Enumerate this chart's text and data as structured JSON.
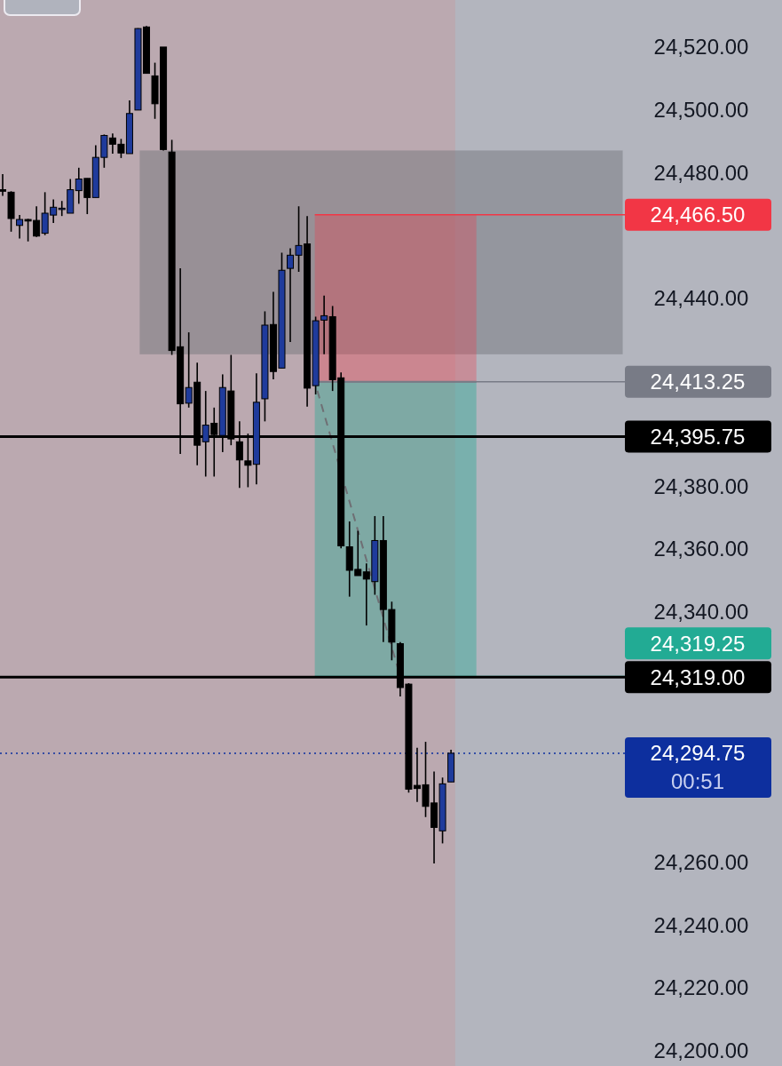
{
  "chart_data": {
    "type": "candlestick",
    "colors": [
      "#000000",
      "#000000",
      "#1f3b9c",
      "#000000",
      "#000000",
      "#1f3b9c",
      "#1f3b9c",
      "#1f3b9c",
      "#1f3b9c",
      "#1f3b9c",
      "#000000",
      "#1f3b9c",
      "#1f3b9c",
      "#000000",
      "#000000",
      "#1f3b9c",
      "#1f3b9c",
      "#000000",
      "#000000",
      "#000000",
      "#000000",
      "#000000",
      "#1f3b9c",
      "#000000",
      "#1f3b9c",
      "#000000",
      "#1f3b9c",
      "#000000",
      "#000000",
      "#000000",
      "#1f3b9c",
      "#1f3b9c",
      "#000000",
      "#1f3b9c",
      "#1f3b9c",
      "#1f3b9c",
      "#000000",
      "#1f3b9c",
      "#1f3b9c",
      "#000000",
      "#000000",
      "#000000",
      "#000000",
      "#000000",
      "#1f3b9c",
      "#000000",
      "#000000",
      "#000000",
      "#000000",
      "#000000",
      "#000000",
      "#000000",
      "#1f3b9c",
      "#1f3b9c",
      null,
      null,
      null,
      null,
      null,
      null,
      null,
      null,
      null,
      null,
      null,
      null,
      null,
      null,
      null,
      null,
      null,
      null,
      null,
      null
    ],
    "categories": [
      null,
      null,
      null,
      null,
      null,
      null,
      null,
      null,
      null,
      null,
      null,
      null,
      null,
      null,
      null,
      null,
      null,
      null,
      null,
      null,
      null,
      null,
      null,
      null,
      null,
      null,
      null,
      null,
      null,
      null,
      null,
      null,
      null,
      null,
      null,
      null,
      null,
      null,
      null,
      null,
      null,
      null,
      null,
      null,
      null,
      null,
      null,
      null,
      null,
      null,
      null,
      null,
      null,
      null,
      null,
      null,
      null,
      null,
      null,
      null,
      null,
      null,
      null,
      null,
      null,
      null,
      null,
      null,
      null,
      null,
      null,
      null,
      null,
      null
    ],
    "ohlc": [
      [
        24474.5,
        24479.5,
        24472.5,
        24474.0
      ],
      [
        24473.7,
        24474.0,
        24461.1,
        24465.3
      ],
      [
        24463.1,
        24466.4,
        24458.9,
        24465.0
      ],
      [
        24465.0,
        24465.2,
        24458.0,
        24464.5
      ],
      [
        24464.7,
        24469.2,
        24459.4,
        24459.7
      ],
      [
        24460.6,
        24473.7,
        24460.0,
        24467.0
      ],
      [
        24466.4,
        24471.4,
        24463.9,
        24468.9
      ],
      [
        24468.2,
        24470.9,
        24466.1,
        24468.6
      ],
      [
        24467.0,
        24477.9,
        24467.0,
        24474.5
      ],
      [
        24474.2,
        24481.5,
        24470.0,
        24477.9
      ],
      [
        24478.1,
        24478.1,
        24466.7,
        24472.0
      ],
      [
        24472.0,
        24488.7,
        24472.0,
        24484.8
      ],
      [
        24484.8,
        24492.1,
        24481.5,
        24491.8
      ],
      [
        24491.0,
        24492.4,
        24486.0,
        24489.0
      ],
      [
        24489.0,
        24490.7,
        24484.6,
        24486.2
      ],
      [
        24486.0,
        24503.0,
        24486.0,
        24498.8
      ],
      [
        24499.9,
        24526.0,
        24499.9,
        24525.9
      ],
      [
        24526.4,
        24526.7,
        24511.6,
        24511.6
      ],
      [
        24510.8,
        24515.0,
        24497.1,
        24501.9
      ],
      [
        24520.0,
        24520.0,
        24487.0,
        24487.3
      ],
      [
        24486.5,
        24490.4,
        24421.8,
        24423.2
      ],
      [
        24424.4,
        24449.4,
        24390.2,
        24406.2
      ],
      [
        24406.4,
        24429.0,
        24405.0,
        24411.4
      ],
      [
        24413.1,
        24419.3,
        24386.6,
        24393.0
      ],
      [
        24394.1,
        24410.3,
        24383.0,
        24399.4
      ],
      [
        24400.0,
        24405.0,
        24383.0,
        24396.4
      ],
      [
        24396.1,
        24415.6,
        24390.8,
        24411.4
      ],
      [
        24410.3,
        24421.8,
        24393.0,
        24395.0
      ],
      [
        24394.1,
        24400.6,
        24379.4,
        24388.3
      ],
      [
        24388.0,
        24396.7,
        24379.6,
        24386.6
      ],
      [
        24386.9,
        24415.9,
        24380.5,
        24406.7
      ],
      [
        24407.8,
        24435.7,
        24400.6,
        24431.3
      ],
      [
        24431.5,
        24441.9,
        24414.0,
        24416.5
      ],
      [
        24417.6,
        24454.4,
        24417.6,
        24448.8
      ],
      [
        24449.4,
        24455.8,
        24425.9,
        24453.6
      ],
      [
        24453.6,
        24469.2,
        24448.3,
        24456.7
      ],
      [
        24457.2,
        24466.1,
        24405.3,
        24411.2
      ],
      [
        24412.0,
        24434.0,
        24409.2,
        24432.7
      ],
      [
        24432.9,
        24440.7,
        24422.0,
        24434.3
      ],
      [
        24434.0,
        24437.4,
        24410.3,
        24413.9
      ],
      [
        24414.5,
        24416.2,
        24360.1,
        24360.9
      ],
      [
        24360.6,
        24368.7,
        24344.7,
        24353.1
      ],
      [
        24353.4,
        24365.7,
        24351.4,
        24351.4
      ],
      [
        24352.6,
        24355.3,
        24335.5,
        24350.3
      ],
      [
        24349.5,
        24370.4,
        24345.3,
        24362.6
      ],
      [
        24362.6,
        24370.4,
        24330.2,
        24340.6
      ],
      [
        24340.6,
        24343.1,
        24324.4,
        24330.2
      ],
      [
        24329.7,
        24330.2,
        24312.9,
        24315.7
      ],
      [
        24316.8,
        24317.1,
        24282.2,
        24283.3
      ],
      [
        24284.5,
        24296.5,
        24279.2,
        24283.5
      ],
      [
        24284.7,
        24298.4,
        24274.4,
        24277.8
      ],
      [
        24278.9,
        24288.9,
        24259.6,
        24271.1
      ],
      [
        24270.0,
        24287.0,
        24266.0,
        24285.0
      ],
      [
        24285.6,
        24295.9,
        24285.6,
        24294.75
      ],
      null,
      null,
      null,
      null,
      null,
      null,
      null,
      null,
      null,
      null,
      null,
      null,
      null,
      null,
      null,
      null,
      null,
      null,
      null,
      null
    ],
    "ylim": [
      24195,
      24535
    ],
    "yticks": [
      {
        "value": 24200,
        "label": "24,200.00"
      },
      {
        "value": 24220,
        "label": "24,220.00"
      },
      {
        "value": 24240,
        "label": "24,240.00"
      },
      {
        "value": 24260,
        "label": "24,260.00"
      },
      {
        "value": 24340,
        "label": "24,340.00"
      },
      {
        "value": 24360,
        "label": "24,360.00"
      },
      {
        "value": 24380,
        "label": "24,380.00"
      },
      {
        "value": 24440,
        "label": "24,440.00"
      },
      {
        "value": 24480,
        "label": "24,480.00"
      },
      {
        "value": 24500,
        "label": "24,500.00"
      },
      {
        "value": 24520,
        "label": "24,520.00"
      }
    ],
    "bands": [
      {
        "axis": "y",
        "from": 24422,
        "to": 24487,
        "color": "#6f7078"
      },
      {
        "axis": "y",
        "from": 24413.25,
        "to": 24466.5,
        "color": "#f23645"
      },
      {
        "axis": "y",
        "from": 24319.25,
        "to": 24413.25,
        "color": "#22ab94"
      }
    ],
    "ref_lines": [
      {
        "axis": "y",
        "value": 24466.5,
        "label": "24,466.50",
        "color": "#f23645"
      },
      {
        "axis": "y",
        "value": 24413.25,
        "label": "24,413.25",
        "color": "#787b86"
      },
      {
        "axis": "y",
        "value": 24395.75,
        "label": "24,395.75",
        "color": "#000000",
        "line_style": "solid"
      },
      {
        "axis": "y",
        "value": 24319.25,
        "label": "24,319.25",
        "color": "#22ab94"
      },
      {
        "axis": "y",
        "value": 24319,
        "label": "24,319.00",
        "color": "#000000",
        "line_style": "solid"
      },
      {
        "axis": "y",
        "value": 24294.75,
        "label": "24,294.75\n00:51",
        "color": "#0d2f9e",
        "line_style": "dotted"
      }
    ]
  }
}
